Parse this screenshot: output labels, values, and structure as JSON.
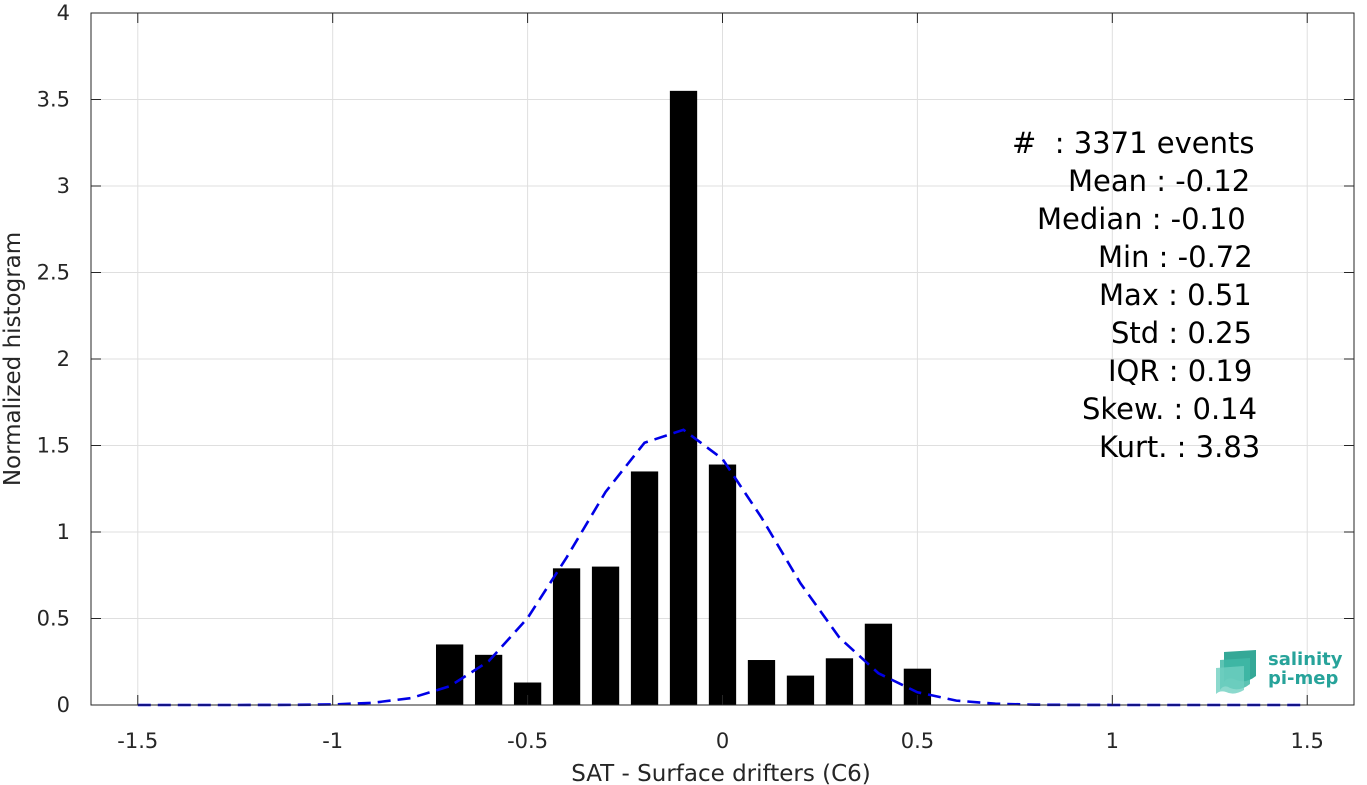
{
  "chart_data": {
    "type": "bar",
    "xlabel": "SAT - Surface drifters (C6)",
    "ylabel": "Normalized histogram",
    "xlim": [
      -1.62,
      1.62
    ],
    "ylim": [
      0,
      4
    ],
    "xticks": [
      "-1.5",
      "-1",
      "-0.5",
      "0",
      "0.5",
      "1",
      "1.5"
    ],
    "xtick_values": [
      -1.5,
      -1,
      -0.5,
      0,
      0.5,
      1,
      1.5
    ],
    "yticks": [
      "0",
      "0.5",
      "1",
      "1.5",
      "2",
      "2.5",
      "3",
      "3.5",
      "4"
    ],
    "ytick_values": [
      0,
      0.5,
      1,
      1.5,
      2,
      2.5,
      3,
      3.5,
      4
    ],
    "grid": true,
    "bar_color": "#000000",
    "bins": [
      {
        "x": -0.7,
        "value": 0.35
      },
      {
        "x": -0.6,
        "value": 0.29
      },
      {
        "x": -0.5,
        "value": 0.13
      },
      {
        "x": -0.4,
        "value": 0.79
      },
      {
        "x": -0.3,
        "value": 0.8
      },
      {
        "x": -0.2,
        "value": 1.35
      },
      {
        "x": -0.1,
        "value": 3.55
      },
      {
        "x": 0.0,
        "value": 1.39
      },
      {
        "x": 0.1,
        "value": 0.26
      },
      {
        "x": 0.2,
        "value": 0.17
      },
      {
        "x": 0.3,
        "value": 0.27
      },
      {
        "x": 0.4,
        "value": 0.47
      },
      {
        "x": 0.5,
        "value": 0.21
      }
    ],
    "fit_curve": {
      "type": "gaussian",
      "color": "#0000e6",
      "style": "dashed",
      "mean": -0.12,
      "std": 0.25
    }
  },
  "stats": [
    "#  : 3371 events",
    "Mean : -0.12",
    "Median : -0.10",
    "Min : -0.72",
    "Max : 0.51",
    "Std : 0.25",
    "IQR : 0.19",
    "Skew. : 0.14",
    "Kurt. : 3.83"
  ],
  "logo": {
    "line1": "salinity",
    "line2": "pi-mep",
    "color": "#27a39a"
  }
}
